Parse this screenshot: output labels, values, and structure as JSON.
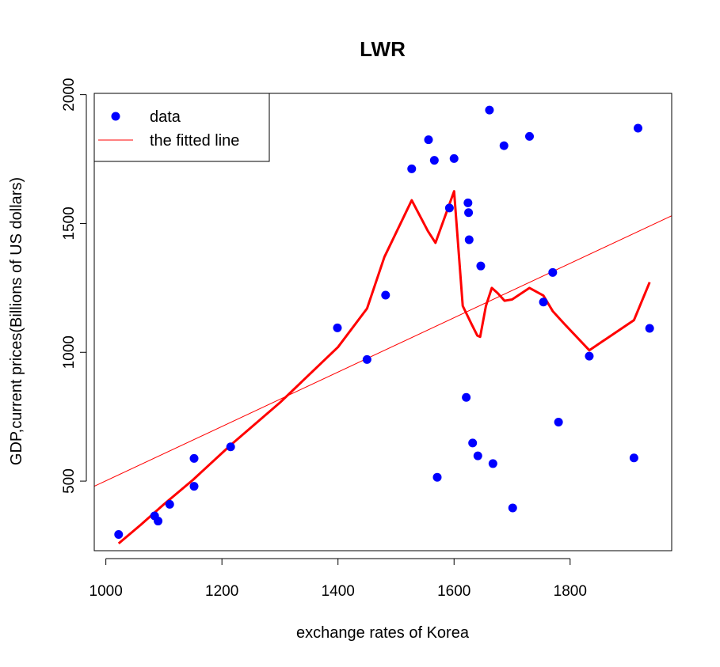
{
  "chart_data": {
    "type": "scatter",
    "title": "LWR",
    "xlabel": "exchange rates of Korea",
    "ylabel": "GDP,current prices(Billions of US dollars)",
    "xlim": [
      980,
      1975
    ],
    "ylim": [
      230,
      2005
    ],
    "xticks": [
      1000,
      1200,
      1400,
      1600,
      1800
    ],
    "yticks": [
      500,
      1000,
      1500,
      2000
    ],
    "grid": false,
    "legend": {
      "position": "top-left",
      "entries": [
        {
          "label": "data",
          "type": "point",
          "color": "#0000ff"
        },
        {
          "label": "the fitted line",
          "type": "line",
          "color": "#ff0000"
        }
      ]
    },
    "points": {
      "name": "data",
      "color": "#0000ff",
      "x": [
        1022,
        1084,
        1090,
        1110,
        1152,
        1152,
        1215,
        1399,
        1450,
        1482,
        1527,
        1556,
        1566,
        1571,
        1592,
        1600,
        1621,
        1624,
        1625,
        1626,
        1632,
        1641,
        1646,
        1661,
        1667,
        1686,
        1701,
        1730,
        1754,
        1770,
        1780,
        1833,
        1910,
        1917,
        1937
      ],
      "y": [
        293,
        365,
        345,
        410,
        480,
        588,
        633,
        1095,
        972,
        1222,
        1712,
        1825,
        1745,
        515,
        1560,
        1752,
        825,
        1580,
        1542,
        1437,
        648,
        598,
        1335,
        1940,
        568,
        1802,
        396,
        1838,
        1195,
        1310,
        729,
        985,
        590,
        1870,
        1093
      ]
    },
    "fitted_line": {
      "name": "the fitted line",
      "color": "#ff0000",
      "x": [
        980,
        1975
      ],
      "y": [
        480,
        1530
      ]
    },
    "lwr_curve": {
      "color": "#ff0000",
      "x": [
        1022,
        1060,
        1100,
        1150,
        1215,
        1300,
        1400,
        1450,
        1480,
        1527,
        1555,
        1568,
        1600,
        1615,
        1630,
        1640,
        1645,
        1655,
        1665,
        1675,
        1687,
        1700,
        1730,
        1754,
        1770,
        1790,
        1833,
        1910,
        1937
      ],
      "y": [
        258,
        330,
        410,
        505,
        640,
        805,
        1020,
        1170,
        1370,
        1590,
        1470,
        1425,
        1625,
        1180,
        1110,
        1065,
        1060,
        1180,
        1250,
        1230,
        1200,
        1205,
        1250,
        1220,
        1160,
        1110,
        1008,
        1125,
        1272
      ]
    }
  }
}
